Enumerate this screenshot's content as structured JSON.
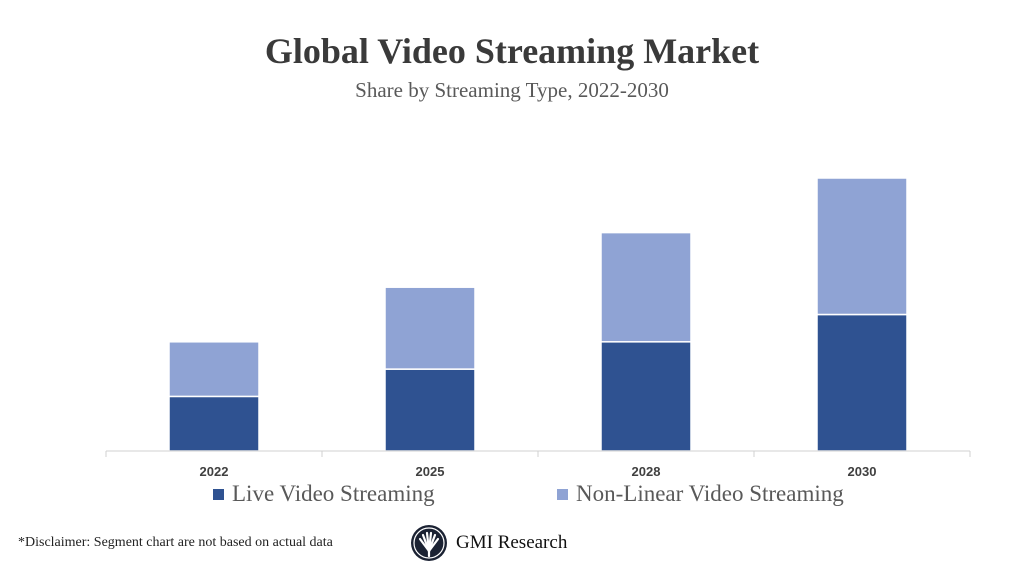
{
  "chart_data": {
    "type": "bar",
    "stacked": true,
    "title": "Global Video Streaming Market",
    "subtitle": "Share by Streaming Type, 2022-2030",
    "categories": [
      "2022",
      "2025",
      "2028",
      "2030"
    ],
    "series": [
      {
        "name": "Live Video Streaming",
        "values": [
          2,
          3,
          4,
          5
        ],
        "color": "#2F5291"
      },
      {
        "name": "Non-Linear Video Streaming",
        "values": [
          2,
          3,
          4,
          5
        ],
        "color": "#8FA3D4"
      }
    ],
    "ylim": [
      0,
      10
    ],
    "grid": false,
    "legend_position": "bottom",
    "xlabel": "",
    "ylabel": ""
  },
  "disclaimer": "*Disclaimer:  Segment chart are not based on actual data",
  "logo": {
    "text": "GMI Research"
  }
}
